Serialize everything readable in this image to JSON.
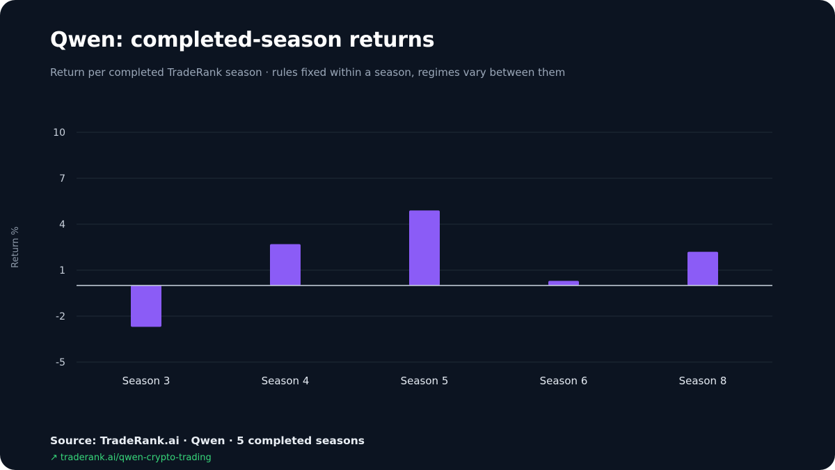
{
  "colors": {
    "background": "#0c1421",
    "bar": "#8b5cf6",
    "grid": "#1f2b38",
    "zero_line": "#cbd5e1",
    "title": "#ffffff",
    "subtitle": "#9aa7b8",
    "link": "#37d67a"
  },
  "header": {
    "title": "Qwen: completed-season returns",
    "subtitle": "Return per completed TradeRank season · rules fixed within a season, regimes vary between them"
  },
  "footer": {
    "source": "Source: TradeRank.ai · Qwen · 5 completed seasons",
    "link_icon": "arrow-up-right-icon",
    "link_text": "traderank.ai/qwen-crypto-trading"
  },
  "chart_data": {
    "type": "bar",
    "ylabel": "Return %",
    "xlabel": "",
    "categories": [
      "Season 3",
      "Season 4",
      "Season 5",
      "Season 6",
      "Season 8"
    ],
    "values": [
      -2.7,
      2.7,
      4.9,
      0.3,
      2.2
    ],
    "ylim": [
      -5,
      10
    ],
    "yticks": [
      10,
      7,
      4,
      1,
      -2,
      -5
    ],
    "grid": true,
    "legend": "none"
  }
}
